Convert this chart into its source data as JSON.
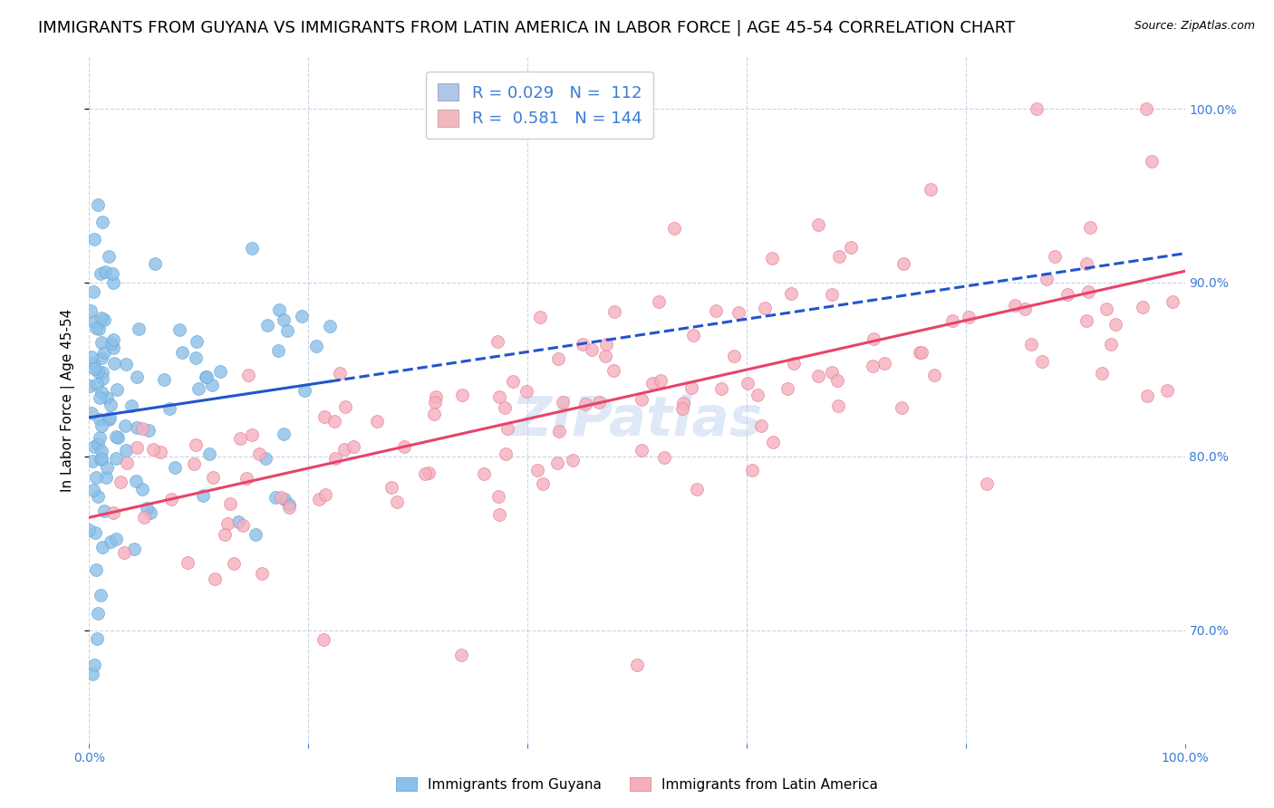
{
  "title": "IMMIGRANTS FROM GUYANA VS IMMIGRANTS FROM LATIN AMERICA IN LABOR FORCE | AGE 45-54 CORRELATION CHART",
  "source": "Source: ZipAtlas.com",
  "ylabel_left": "In Labor Force | Age 45-54",
  "legend_entries": [
    {
      "label": "Immigrants from Guyana",
      "color": "#aec6e8",
      "R": "0.029",
      "N": "112"
    },
    {
      "label": "Immigrants from Latin America",
      "color": "#f4b8c1",
      "R": "0.581",
      "N": "144"
    }
  ],
  "guyana_color": "#8cc0e8",
  "guyana_edge": "#6aaad8",
  "latin_color": "#f4b0bc",
  "latin_edge": "#e880a0",
  "trendline_guyana_color": "#2255cc",
  "trendline_latin_color": "#e8436a",
  "watermark": "ZIPatlas",
  "background_color": "#ffffff",
  "grid_color": "#c8d4e8",
  "title_fontsize": 13,
  "axis_label_fontsize": 11,
  "tick_fontsize": 10,
  "legend_fontsize": 13
}
